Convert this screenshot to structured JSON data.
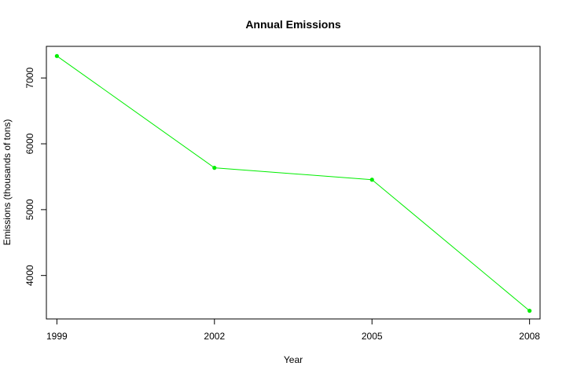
{
  "chart_data": {
    "type": "line",
    "title": "Annual Emissions",
    "xlabel": "Year",
    "ylabel": "Emissions (thousands of tons)",
    "x": [
      1999,
      2002,
      2005,
      2008
    ],
    "x_tick_labels": [
      "1999",
      "2002",
      "2005",
      "2008"
    ],
    "y_ticks": [
      4000,
      5000,
      6000,
      7000
    ],
    "y_tick_labels": [
      "4000",
      "5000",
      "6000",
      "7000"
    ],
    "xlim": [
      1998.8,
      2008.2
    ],
    "ylim": [
      3340,
      7480
    ],
    "series": [
      {
        "values": [
          7333,
          5635,
          5455,
          3464
        ],
        "color": "#00ee00"
      }
    ],
    "grid": false,
    "legend": "none"
  }
}
